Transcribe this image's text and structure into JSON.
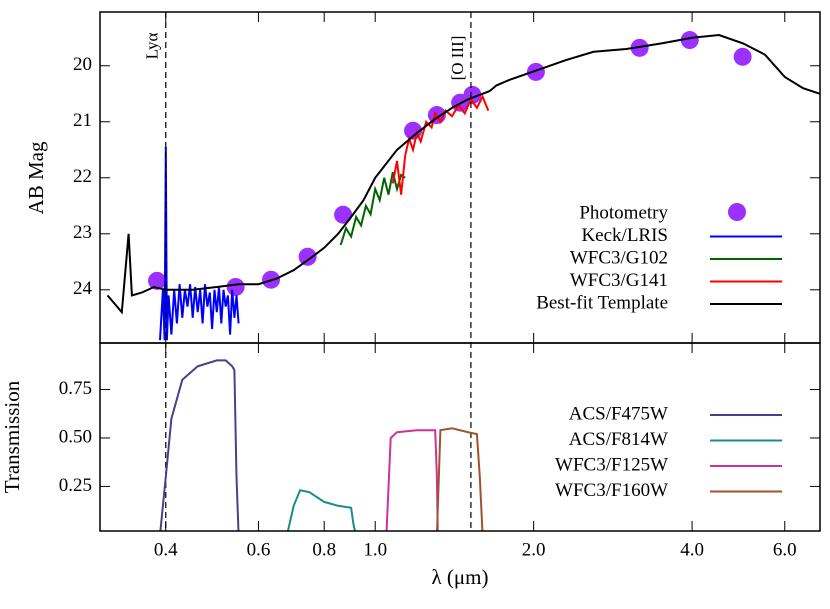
{
  "chart_data": [
    {
      "type": "line",
      "ylabel": "AB Mag",
      "log_x": true,
      "xlim": [
        0.3,
        7.0
      ],
      "ylim": [
        24.95,
        19.04
      ],
      "xticks": [
        0.4,
        0.6,
        0.8,
        {
          "value": 1.0,
          "label": "1.0"
        },
        {
          "value": 2.0,
          "label": "2.0"
        },
        {
          "value": 4.0,
          "label": "4.0"
        },
        {
          "value": 6.0,
          "label": "6.0"
        }
      ],
      "yticks": [
        20,
        21,
        22,
        23,
        24
      ],
      "legend": "lower right",
      "annotations": [
        {
          "text": "Lyα",
          "x": 0.4
        },
        {
          "text": "[O III]",
          "x": 1.52
        }
      ],
      "series": [
        {
          "name": "Photometry",
          "color": "#9b30ff",
          "marker": "circle",
          "x": [
            0.385,
            0.543,
            0.634,
            0.744,
            0.869,
            1.18,
            1.31,
            1.45,
            1.53,
            2.02,
            3.18,
            3.96,
            4.99
          ],
          "values": [
            23.84,
            23.95,
            23.82,
            23.41,
            22.66,
            21.16,
            20.88,
            20.66,
            20.52,
            20.11,
            19.68,
            19.54,
            19.84
          ]
        },
        {
          "name": "Keck/LRIS",
          "color": "#0000ff",
          "x": [
            0.39,
            0.395,
            0.398,
            0.4,
            0.402,
            0.405,
            0.41,
            0.415,
            0.42,
            0.425,
            0.43,
            0.435,
            0.44,
            0.445,
            0.45,
            0.455,
            0.46,
            0.465,
            0.47,
            0.475,
            0.48,
            0.485,
            0.49,
            0.495,
            0.5,
            0.505,
            0.51,
            0.515,
            0.52,
            0.525,
            0.53,
            0.535,
            0.54,
            0.545,
            0.55
          ],
          "values": [
            24.9,
            24.0,
            24.9,
            21.45,
            24.9,
            24.1,
            24.8,
            24.0,
            24.6,
            23.9,
            24.5,
            24.0,
            24.3,
            23.9,
            24.5,
            23.95,
            24.4,
            24.0,
            24.6,
            23.9,
            24.3,
            24.05,
            24.7,
            24.0,
            24.4,
            23.95,
            24.6,
            24.0,
            24.3,
            24.1,
            24.8,
            24.0,
            24.5,
            24.1,
            24.6
          ]
        },
        {
          "name": "WFC3/G102",
          "color": "#006400",
          "x": [
            0.86,
            0.88,
            0.9,
            0.92,
            0.94,
            0.96,
            0.98,
            1.0,
            1.02,
            1.04,
            1.06,
            1.08,
            1.1,
            1.12,
            1.14
          ],
          "values": [
            23.2,
            22.9,
            23.05,
            22.7,
            22.85,
            22.5,
            22.65,
            22.2,
            22.4,
            22.0,
            22.3,
            21.9,
            22.2,
            21.95,
            22.0
          ]
        },
        {
          "name": "WFC3/G141",
          "color": "#ff0000",
          "x": [
            1.08,
            1.1,
            1.12,
            1.14,
            1.16,
            1.18,
            1.2,
            1.22,
            1.25,
            1.28,
            1.3,
            1.33,
            1.36,
            1.4,
            1.44,
            1.48,
            1.52,
            1.56,
            1.6,
            1.64
          ],
          "values": [
            22.1,
            21.7,
            22.3,
            21.6,
            21.3,
            21.5,
            21.2,
            21.35,
            21.0,
            21.1,
            20.85,
            21.0,
            20.8,
            20.9,
            20.7,
            20.85,
            20.6,
            20.75,
            20.55,
            20.8
          ]
        },
        {
          "name": "Best-fit Template",
          "color": "#000000",
          "x": [
            0.31,
            0.33,
            0.34,
            0.345,
            0.36,
            0.38,
            0.4,
            0.45,
            0.5,
            0.55,
            0.6,
            0.65,
            0.7,
            0.75,
            0.8,
            0.85,
            0.9,
            0.95,
            1.0,
            1.1,
            1.2,
            1.3,
            1.4,
            1.5,
            1.6,
            1.65,
            1.7,
            1.8,
            2.0,
            2.3,
            2.6,
            3.0,
            3.5,
            4.0,
            4.5,
            5.0,
            5.5,
            6.0,
            6.5,
            7.0
          ],
          "values": [
            24.1,
            24.4,
            23.0,
            24.1,
            24.05,
            23.95,
            24.0,
            24.0,
            23.95,
            23.9,
            23.9,
            23.8,
            23.65,
            23.45,
            23.25,
            23.0,
            22.7,
            22.4,
            22.0,
            21.5,
            21.2,
            20.95,
            20.75,
            20.6,
            20.5,
            20.45,
            20.35,
            20.25,
            20.1,
            19.9,
            19.75,
            19.7,
            19.6,
            19.5,
            19.45,
            19.6,
            19.8,
            20.2,
            20.4,
            20.5
          ]
        }
      ]
    },
    {
      "type": "line",
      "ylabel": "Transmission",
      "xlabel": "λ (μm)",
      "log_x": true,
      "xlim": [
        0.3,
        7.0
      ],
      "ylim": [
        0.02,
        0.99
      ],
      "xticks": [
        0.4,
        0.6,
        0.8,
        {
          "value": 1.0,
          "label": "1.0"
        },
        {
          "value": 2.0,
          "label": "2.0"
        },
        {
          "value": 4.0,
          "label": "4.0"
        },
        {
          "value": 6.0,
          "label": "6.0"
        }
      ],
      "yticks": [
        0.25,
        {
          "value": 0.5,
          "label": "0.50"
        },
        0.75
      ],
      "legend": "lower right",
      "series": [
        {
          "name": "ACS/F475W",
          "color": "#4b3f8c",
          "x": [
            0.39,
            0.4,
            0.41,
            0.43,
            0.46,
            0.5,
            0.52,
            0.535,
            0.54,
            0.545,
            0.55
          ],
          "values": [
            0,
            0.3,
            0.6,
            0.8,
            0.87,
            0.9,
            0.9,
            0.87,
            0.85,
            0.3,
            0
          ]
        },
        {
          "name": "ACS/F814W",
          "color": "#1a8c8c",
          "x": [
            0.68,
            0.7,
            0.72,
            0.75,
            0.8,
            0.85,
            0.9,
            0.91,
            0.92
          ],
          "values": [
            0,
            0.15,
            0.23,
            0.22,
            0.17,
            0.15,
            0.14,
            0.05,
            0
          ]
        },
        {
          "name": "WFC3/F125W",
          "color": "#cc3399",
          "x": [
            1.05,
            1.07,
            1.1,
            1.2,
            1.3,
            1.31,
            1.315
          ],
          "values": [
            0,
            0.5,
            0.53,
            0.54,
            0.54,
            0.3,
            0
          ]
        },
        {
          "name": "WFC3/F160W",
          "color": "#a0522d",
          "x": [
            1.31,
            1.33,
            1.4,
            1.5,
            1.56,
            1.58,
            1.6
          ],
          "values": [
            0,
            0.54,
            0.55,
            0.53,
            0.52,
            0.3,
            0
          ]
        }
      ]
    }
  ]
}
